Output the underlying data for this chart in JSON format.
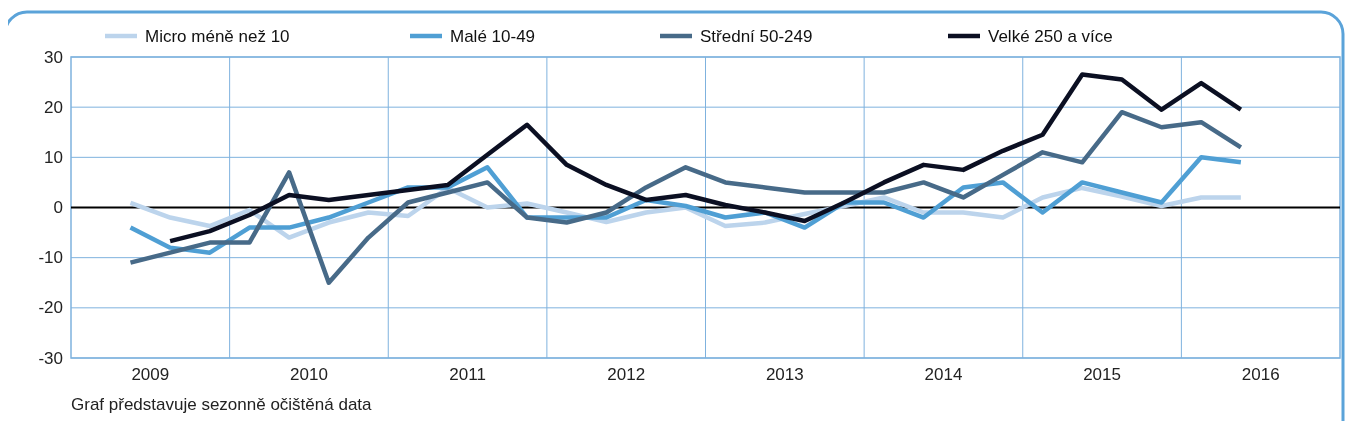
{
  "chart_data": {
    "type": "line",
    "x": [
      2009.375,
      2009.625,
      2009.875,
      2010.125,
      2010.375,
      2010.625,
      2010.875,
      2011.125,
      2011.375,
      2011.625,
      2011.875,
      2012.125,
      2012.375,
      2012.625,
      2012.875,
      2013.125,
      2013.375,
      2013.625,
      2013.875,
      2014.125,
      2014.375,
      2014.625,
      2014.875,
      2015.125,
      2015.375,
      2015.625,
      2015.875,
      2016.125,
      2016.375
    ],
    "series": [
      {
        "name": "Micro méně než 10",
        "color": "#bcd4ec",
        "values": [
          0.9,
          -2,
          -3.7,
          -0.5,
          -6,
          -3,
          -1,
          -1.7,
          3.9,
          0,
          0.8,
          -1,
          -2.9,
          -1,
          0,
          -3.7,
          -3,
          -1.3,
          0.3,
          2,
          -1,
          -1,
          -2,
          2,
          3.9,
          2.2,
          0.3,
          2,
          2
        ]
      },
      {
        "name": "Malé 10-49",
        "color": "#4f9fd4",
        "values": [
          -4,
          -8,
          -9,
          -4,
          -4,
          -2,
          1,
          4,
          4,
          8,
          -2,
          -2,
          -2,
          1.5,
          0.3,
          -2,
          -1,
          -4,
          1,
          1,
          -2,
          4,
          5,
          -1,
          5,
          3,
          1,
          10,
          9
        ]
      },
      {
        "name": "Střední 50-249",
        "color": "#476a88",
        "values": [
          -11,
          -9,
          -7,
          -7,
          7,
          -15,
          -6,
          1,
          3,
          5,
          -2,
          -3,
          -1,
          4,
          8,
          5,
          4,
          3,
          3,
          3,
          5,
          2,
          6.5,
          11,
          9,
          19,
          16,
          17,
          12
        ]
      },
      {
        "name": "Velké 250 a více",
        "color": "#0b0f22",
        "values": [
          null,
          -6.7,
          -4.7,
          -1.5,
          2.5,
          1.5,
          2.5,
          3.5,
          4.5,
          10.5,
          16.5,
          8.5,
          4.5,
          1.5,
          2.5,
          0.5,
          -1,
          -2.7,
          1,
          5,
          8.5,
          7.5,
          11.3,
          14.5,
          26.5,
          25.5,
          19.5,
          24.8,
          19.5
        ]
      }
    ],
    "xlim": [
      2009,
      2017
    ],
    "xticks": [
      {
        "value": 2009.5,
        "label": "2009"
      },
      {
        "value": 2010,
        "label": null
      },
      {
        "value": 2010.5,
        "label": "2010"
      },
      {
        "value": 2011,
        "label": null
      },
      {
        "value": 2011.5,
        "label": "2011"
      },
      {
        "value": 2012,
        "label": null
      },
      {
        "value": 2012.5,
        "label": "2012"
      },
      {
        "value": 2013,
        "label": null
      },
      {
        "value": 2013.5,
        "label": "2013"
      },
      {
        "value": 2014,
        "label": null
      },
      {
        "value": 2014.5,
        "label": "2014"
      },
      {
        "value": 2015,
        "label": null
      },
      {
        "value": 2015.5,
        "label": "2015"
      },
      {
        "value": 2016,
        "label": null
      },
      {
        "value": 2016.5,
        "label": "2016"
      }
    ],
    "ylim": [
      -30,
      30
    ],
    "yticks": [
      -30,
      -20,
      -10,
      0,
      10,
      20,
      30
    ],
    "ref_lines": [
      {
        "axis": "y",
        "value": 0,
        "color": "#000000"
      }
    ],
    "grid": true,
    "legend": "top",
    "marker": "none",
    "line_style": "solid",
    "annotations": [
      "Graf představuje sezonně očištěná data"
    ]
  }
}
